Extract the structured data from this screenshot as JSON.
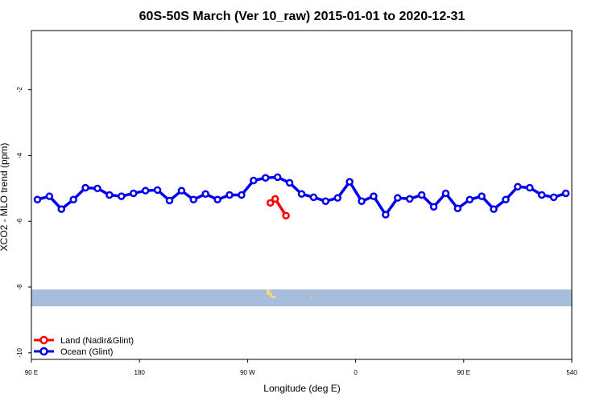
{
  "chart_data": {
    "type": "line",
    "title": "60S-50S March (Ver 10_raw)   2015-01-01 to 2020-12-31",
    "x_label": "Longitude (deg E)",
    "y_label": "XCO2 - MLO trend (ppm)",
    "xlim": [
      90,
      540
    ],
    "ylim": [
      -10.2,
      -0.2
    ],
    "xticks": [
      {
        "value": 90,
        "label": "90 E"
      },
      180,
      {
        "value": 270,
        "label": "90 W"
      },
      {
        "value": 360,
        "label": "0"
      },
      {
        "value": 450,
        "label": "90 E"
      },
      540
    ],
    "yticks": [
      -10,
      -8,
      -6,
      -4,
      -2
    ],
    "legend": "bottom-left",
    "series": [
      {
        "name": "Land (Nadir&Glint)",
        "color": "#ff0000",
        "x": [
          289,
          293,
          302
        ],
        "values": [
          -5.44,
          -5.32,
          -5.83
        ]
      },
      {
        "name": "Ocean (Glint)",
        "color": "#0000ee",
        "x": [
          95,
          105,
          115,
          125,
          135,
          145,
          155,
          165,
          175,
          185,
          195,
          205,
          215,
          225,
          235,
          245,
          255,
          265,
          275,
          285,
          295,
          305,
          315,
          325,
          335,
          345,
          355,
          365,
          375,
          385,
          395,
          405,
          415,
          425,
          435,
          445,
          455,
          465,
          475,
          485,
          495,
          505,
          515,
          525,
          535
        ],
        "values": [
          -5.34,
          -5.24,
          -5.63,
          -5.34,
          -4.98,
          -5.0,
          -5.2,
          -5.24,
          -5.15,
          -5.07,
          -5.05,
          -5.37,
          -5.07,
          -5.34,
          -5.17,
          -5.34,
          -5.2,
          -5.2,
          -4.76,
          -4.68,
          -4.66,
          -4.83,
          -5.17,
          -5.27,
          -5.39,
          -5.29,
          -4.8,
          -5.39,
          -5.24,
          -5.8,
          -5.29,
          -5.32,
          -5.2,
          -5.56,
          -5.15,
          -5.61,
          -5.34,
          -5.24,
          -5.63,
          -5.34,
          -4.95,
          -4.98,
          -5.2,
          -5.27,
          -5.15
        ]
      }
    ]
  }
}
